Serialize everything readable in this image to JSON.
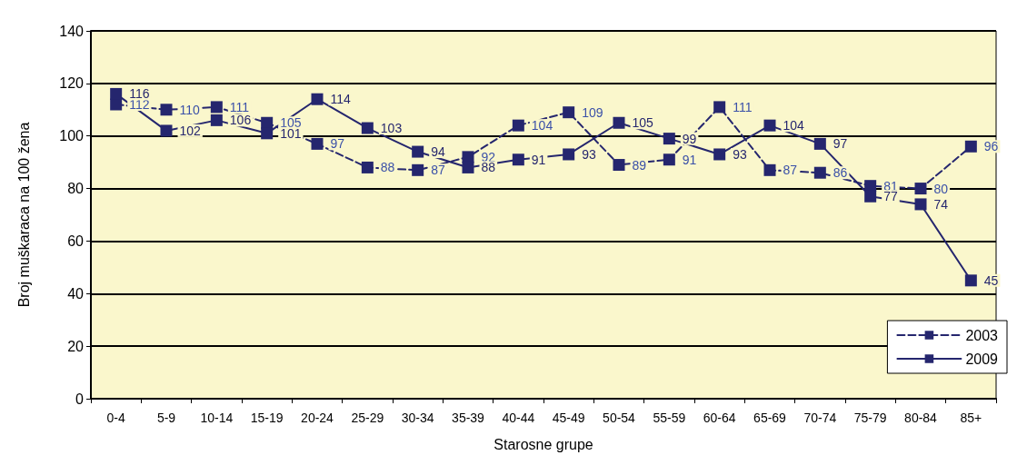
{
  "chart_data": {
    "type": "line",
    "xlabel": "Starosne grupe",
    "ylabel": "Broj muškaraca na 100 žena",
    "categories": [
      "0-4",
      "5-9",
      "10-14",
      "15-19",
      "20-24",
      "25-29",
      "30-34",
      "35-39",
      "40-44",
      "45-49",
      "50-54",
      "55-59",
      "60-64",
      "65-69",
      "70-74",
      "75-79",
      "80-84",
      "85+"
    ],
    "series": [
      {
        "name": "2003",
        "color": "#25266e",
        "line_style": "dashed",
        "values": [
          112,
          110,
          111,
          105,
          97,
          88,
          87,
          92,
          104,
          109,
          89,
          91,
          111,
          87,
          86,
          81,
          80,
          96
        ]
      },
      {
        "name": "2009",
        "color": "#25266e",
        "line_style": "solid",
        "values": [
          116,
          102,
          106,
          101,
          114,
          103,
          94,
          88,
          91,
          93,
          105,
          99,
          93,
          104,
          97,
          77,
          74,
          45
        ]
      }
    ],
    "ylim": [
      0,
      140
    ],
    "yticks": [
      0,
      20,
      40,
      60,
      80,
      100,
      120,
      140
    ],
    "grid": "y",
    "legend": "bottom right",
    "marker": "square",
    "data_labels": true
  }
}
